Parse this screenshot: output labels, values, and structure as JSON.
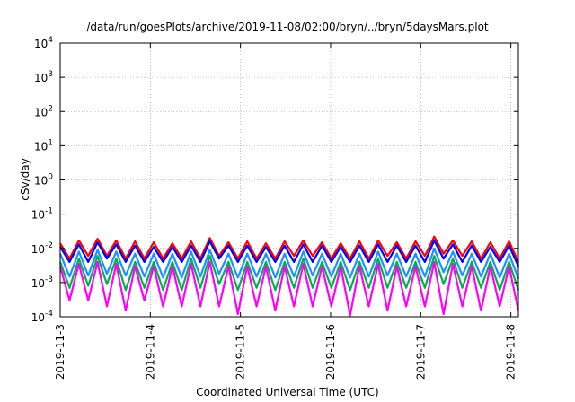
{
  "chart_data": {
    "type": "line",
    "title": "/data/run/goesPlots/archive/2019-11-08/02:00/bryn/../bryn/5daysMars.plot",
    "xlabel": "Coordinated Universal Time (UTC)",
    "ylabel": "cSv/day",
    "yscale": "log",
    "ylim": [
      0.0001,
      10000
    ],
    "xlim": [
      "2019-11-03T00:00",
      "2019-11-08T02:00"
    ],
    "grid": true,
    "x_ticks": [
      "2019-11-3",
      "2019-11-4",
      "2019-11-5",
      "2019-11-6",
      "2019-11-7",
      "2019-11-8"
    ],
    "y_ticks": [
      {
        "base": "10",
        "exp": "4"
      },
      {
        "base": "10",
        "exp": "3"
      },
      {
        "base": "10",
        "exp": "2"
      },
      {
        "base": "10",
        "exp": "1"
      },
      {
        "base": "10",
        "exp": "0"
      },
      {
        "base": "10",
        "exp": "-1"
      },
      {
        "base": "10",
        "exp": "-2"
      },
      {
        "base": "10",
        "exp": "-3"
      },
      {
        "base": "10",
        "exp": "-4"
      }
    ],
    "series": [
      {
        "color": "#ff0000",
        "values": [
          0.014,
          0.005,
          0.017,
          0.006,
          0.019,
          0.006,
          0.017,
          0.005,
          0.016,
          0.005,
          0.015,
          0.005,
          0.014,
          0.005,
          0.016,
          0.005,
          0.02,
          0.006,
          0.015,
          0.005,
          0.016,
          0.005,
          0.014,
          0.005,
          0.016,
          0.006,
          0.017,
          0.006,
          0.015,
          0.005,
          0.014,
          0.005,
          0.016,
          0.005,
          0.017,
          0.006,
          0.015,
          0.005,
          0.016,
          0.006,
          0.022,
          0.007,
          0.017,
          0.006,
          0.016,
          0.005,
          0.015,
          0.005,
          0.016,
          0.004
        ]
      },
      {
        "color": "#0000ff",
        "values": [
          0.011,
          0.004,
          0.013,
          0.004,
          0.015,
          0.005,
          0.013,
          0.004,
          0.012,
          0.004,
          0.011,
          0.004,
          0.011,
          0.004,
          0.012,
          0.004,
          0.016,
          0.005,
          0.012,
          0.004,
          0.012,
          0.004,
          0.011,
          0.004,
          0.012,
          0.004,
          0.013,
          0.004,
          0.012,
          0.004,
          0.011,
          0.004,
          0.012,
          0.004,
          0.013,
          0.004,
          0.012,
          0.004,
          0.012,
          0.004,
          0.017,
          0.005,
          0.013,
          0.004,
          0.012,
          0.004,
          0.011,
          0.004,
          0.012,
          0.003
        ]
      },
      {
        "color": "#1e90ff",
        "values": [
          0.007,
          0.0015,
          0.008,
          0.0016,
          0.009,
          0.0018,
          0.008,
          0.0016,
          0.007,
          0.0015,
          0.007,
          0.0014,
          0.007,
          0.0014,
          0.008,
          0.0015,
          0.009,
          0.0018,
          0.007,
          0.0014,
          0.007,
          0.0015,
          0.007,
          0.0014,
          0.007,
          0.0015,
          0.008,
          0.0016,
          0.007,
          0.0015,
          0.007,
          0.0014,
          0.007,
          0.0015,
          0.008,
          0.0016,
          0.007,
          0.0015,
          0.007,
          0.0015,
          0.01,
          0.002,
          0.008,
          0.0016,
          0.007,
          0.0015,
          0.007,
          0.0014,
          0.007,
          0.0013
        ]
      },
      {
        "color": "#00b050",
        "values": [
          0.004,
          0.0007,
          0.005,
          0.0008,
          0.006,
          0.0009,
          0.005,
          0.0006,
          0.004,
          0.0007,
          0.004,
          0.0006,
          0.004,
          0.0006,
          0.005,
          0.0007,
          0.006,
          0.0009,
          0.004,
          0.0006,
          0.004,
          0.0007,
          0.004,
          0.0006,
          0.004,
          0.0007,
          0.005,
          0.0007,
          0.004,
          0.0007,
          0.004,
          0.0006,
          0.004,
          0.0007,
          0.005,
          0.0007,
          0.004,
          0.0007,
          0.004,
          0.0007,
          0.006,
          0.0009,
          0.005,
          0.0007,
          0.004,
          0.0007,
          0.004,
          0.0006,
          0.004,
          0.0006
        ]
      },
      {
        "color": "#ff00ff",
        "values": [
          0.003,
          0.0003,
          0.0035,
          0.0003,
          0.004,
          0.0002,
          0.0035,
          0.00015,
          0.003,
          0.0003,
          0.003,
          0.0002,
          0.003,
          0.0002,
          0.0035,
          0.0002,
          0.004,
          0.0002,
          0.003,
          0.00012,
          0.003,
          0.0002,
          0.003,
          0.00015,
          0.003,
          0.0002,
          0.0035,
          0.0002,
          0.003,
          0.0002,
          0.003,
          0.00011,
          0.003,
          0.0002,
          0.0035,
          0.00015,
          0.003,
          0.0002,
          0.003,
          0.0002,
          0.004,
          0.00012,
          0.0035,
          0.0002,
          0.003,
          0.00015,
          0.003,
          0.0002,
          0.003,
          0.00015
        ]
      }
    ]
  }
}
